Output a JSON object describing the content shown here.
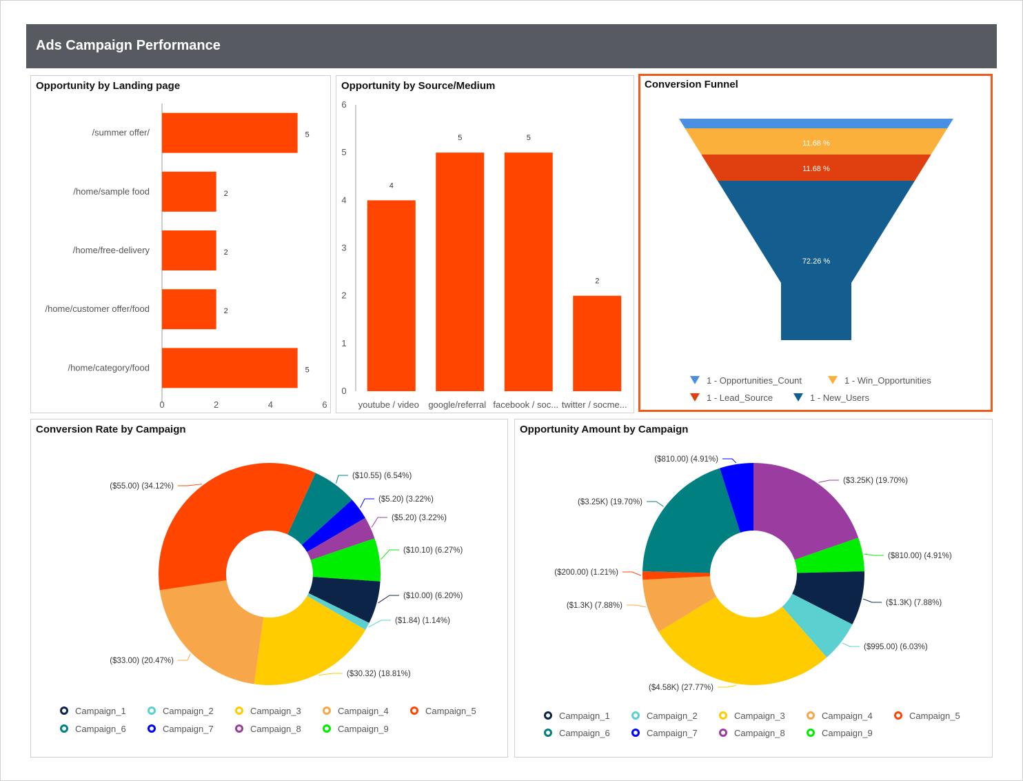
{
  "page": {
    "title": "Ads Campaign Performance"
  },
  "panels": {
    "landing": {
      "title": "Opportunity by Landing page"
    },
    "source": {
      "title": "Opportunity by Source/Medium"
    },
    "funnel": {
      "title": "Conversion Funnel"
    },
    "rate": {
      "title": "Conversion Rate by Campaign"
    },
    "amount": {
      "title": "Opportunity Amount by Campaign"
    }
  },
  "colors": {
    "bar": "#ff4500",
    "text": "#555555"
  },
  "chart_data": [
    {
      "id": "landing",
      "type": "bar",
      "orientation": "horizontal",
      "categories": [
        "/summer offer/",
        "/home/sample food",
        "/home/free-delivery",
        "/home/customer offer/food",
        "/home/category/food"
      ],
      "values": [
        5,
        2,
        2,
        2,
        5
      ],
      "xlim": [
        0,
        6
      ],
      "xticks": [
        0,
        2,
        4,
        6
      ]
    },
    {
      "id": "source",
      "type": "bar",
      "categories": [
        "youtube / video",
        "google/referral",
        "facebook / soc...",
        "twitter / socme..."
      ],
      "values": [
        4,
        5,
        5,
        2
      ],
      "ylim": [
        0,
        6
      ],
      "yticks": [
        0,
        1,
        2,
        3,
        4,
        5,
        6
      ]
    },
    {
      "id": "funnel",
      "type": "funnel",
      "stages": [
        {
          "name": "1 - Opportunities_Count",
          "color": "#4a90e2",
          "label": ""
        },
        {
          "name": "1 - Win_Opportunities",
          "color": "#fbb03b",
          "label": "11.68 %"
        },
        {
          "name": "1 - Lead_Source",
          "color": "#e0400f",
          "label": "11.68 %"
        },
        {
          "name": "1 - New_Users",
          "color": "#135e8f",
          "label": "72.26 %"
        }
      ],
      "legend_order": [
        0,
        1,
        2,
        3
      ]
    },
    {
      "id": "rate",
      "type": "pie",
      "donut": true,
      "slices": [
        {
          "name": "Campaign_6",
          "label": "($10.55) (6.54%)",
          "value": 6.54,
          "color": "#008080"
        },
        {
          "name": "Campaign_7",
          "label": "($5.20) (3.22%)",
          "value": 3.22,
          "color": "#0000ff"
        },
        {
          "name": "Campaign_8",
          "label": "($5.20) (3.22%)",
          "value": 3.22,
          "color": "#9b3ca0"
        },
        {
          "name": "Campaign_9",
          "label": "($10.10) (6.27%)",
          "value": 6.27,
          "color": "#00ee00"
        },
        {
          "name": "Campaign_1",
          "label": "($10.00) (6.20%)",
          "value": 6.2,
          "color": "#0b2447"
        },
        {
          "name": "Campaign_2",
          "label": "($1.84) (1.14%)",
          "value": 1.14,
          "color": "#5bd0d0"
        },
        {
          "name": "Campaign_3",
          "label": "($30.32) (18.81%)",
          "value": 18.81,
          "color": "#ffcc00"
        },
        {
          "name": "Campaign_4",
          "label": "($33.00) (20.47%)",
          "value": 20.47,
          "color": "#f7a74a"
        },
        {
          "name": "Campaign_5",
          "label": "($55.00) (34.12%)",
          "value": 34.12,
          "color": "#ff4500"
        }
      ],
      "legend": [
        "Campaign_1",
        "Campaign_2",
        "Campaign_3",
        "Campaign_4",
        "Campaign_5",
        "Campaign_6",
        "Campaign_7",
        "Campaign_8",
        "Campaign_9"
      ]
    },
    {
      "id": "amount",
      "type": "pie",
      "donut": true,
      "slices": [
        {
          "name": "Campaign_8",
          "label": "($3.25K) (19.70%)",
          "value": 19.7,
          "color": "#9b3ca0"
        },
        {
          "name": "Campaign_9",
          "label": "($810.00) (4.91%)",
          "value": 4.91,
          "color": "#00ee00"
        },
        {
          "name": "Campaign_1",
          "label": "($1.3K) (7.88%)",
          "value": 7.88,
          "color": "#0b2447"
        },
        {
          "name": "Campaign_2",
          "label": "($995.00) (6.03%)",
          "value": 6.03,
          "color": "#5bd0d0"
        },
        {
          "name": "Campaign_3",
          "label": "($4.58K) (27.77%)",
          "value": 27.77,
          "color": "#ffcc00"
        },
        {
          "name": "Campaign_4",
          "label": "($1.3K) (7.88%)",
          "value": 7.88,
          "color": "#f7a74a"
        },
        {
          "name": "Campaign_5",
          "label": "($200.00) (1.21%)",
          "value": 1.21,
          "color": "#ff4500"
        },
        {
          "name": "Campaign_6",
          "label": "($3.25K) (19.70%)",
          "value": 19.7,
          "color": "#008080"
        },
        {
          "name": "Campaign_7",
          "label": "($810.00) (4.91%)",
          "value": 4.91,
          "color": "#0000ff"
        }
      ],
      "legend": [
        "Campaign_1",
        "Campaign_2",
        "Campaign_3",
        "Campaign_4",
        "Campaign_5",
        "Campaign_6",
        "Campaign_7",
        "Campaign_8",
        "Campaign_9"
      ]
    }
  ]
}
